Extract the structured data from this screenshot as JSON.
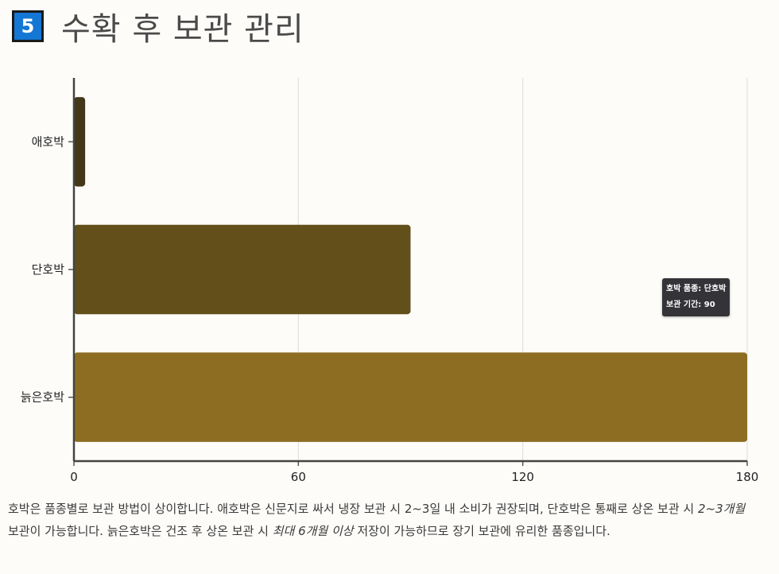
{
  "header": {
    "section_number": "5",
    "title": "수확 후 보관 관리"
  },
  "chart_data": {
    "type": "bar",
    "orientation": "horizontal",
    "categories": [
      "애호박",
      "단호박",
      "늙은호박"
    ],
    "values": [
      3,
      90,
      180
    ],
    "xlim": [
      0,
      180
    ],
    "xticks": [
      "0",
      "60",
      "120",
      "180"
    ],
    "grid": true,
    "colors": [
      "#45381a",
      "#634f19",
      "#8d6d22"
    ]
  },
  "tooltip": {
    "line1": "호박 품종: 단호박",
    "line2": "보관 기간: 90"
  },
  "caption": {
    "p1": "호박은 품종별로 보관 방법이 상이합니다. 애호박은 신문지로 싸서 냉장 보관 시 2~3일 내 소비가 권장되며, 단호박은 통째로 상온 보관 시 ",
    "em1": "2~3개월",
    "p2": " 보관이 가능합니다. 늙은호박은 건조 후 상온 보관 시 ",
    "em2": "최대 6개월 이상",
    "p3": " 저장이 가능하므로 장기 보관에 유리한 품종입니다."
  }
}
